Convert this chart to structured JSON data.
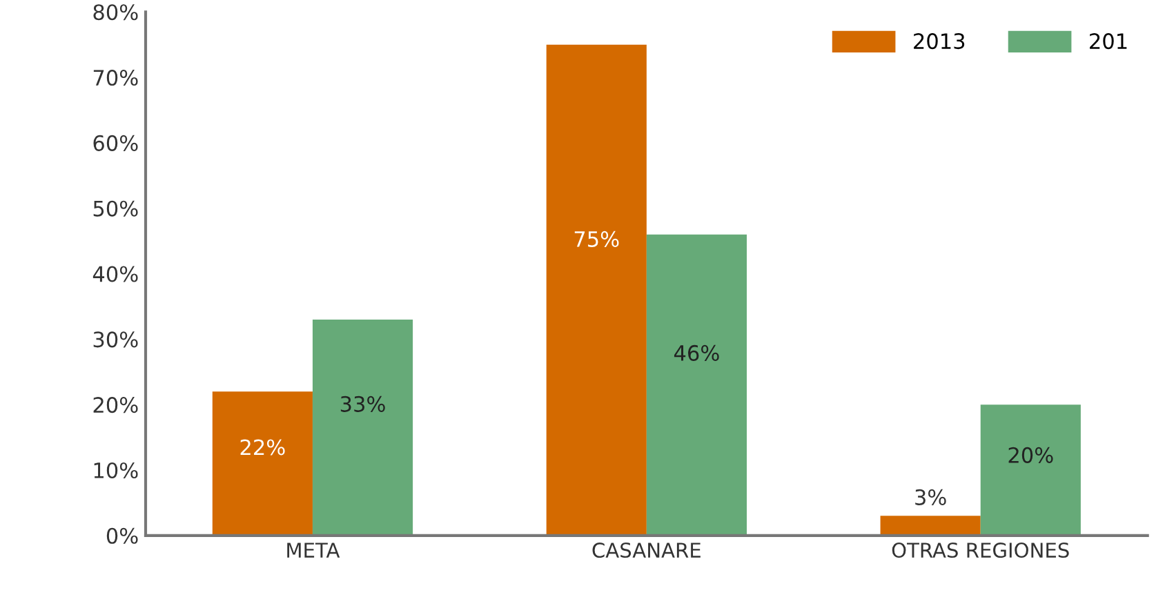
{
  "chart_data": {
    "type": "bar",
    "categories": [
      "META",
      "CASANARE",
      "OTRAS REGIONES"
    ],
    "series": [
      {
        "name": "2013",
        "color": "#d46a00",
        "values": [
          22,
          75,
          3
        ],
        "value_labels": [
          "22%",
          "75%",
          "3%"
        ]
      },
      {
        "name": "201",
        "color": "#66aa78",
        "values": [
          33,
          46,
          20
        ],
        "value_labels": [
          "33%",
          "46%",
          "20%"
        ]
      }
    ],
    "ylim": [
      0,
      80
    ],
    "yticks": [
      {
        "value": 0,
        "label": "0%"
      },
      {
        "value": 10,
        "label": "10%"
      },
      {
        "value": 20,
        "label": "20%"
      },
      {
        "value": 30,
        "label": "30%"
      },
      {
        "value": 40,
        "label": "40%"
      },
      {
        "value": 50,
        "label": "50%"
      },
      {
        "value": 60,
        "label": "60%"
      },
      {
        "value": 70,
        "label": "70%"
      },
      {
        "value": 80,
        "label": "80%"
      }
    ],
    "grid": false,
    "legend": "top right"
  }
}
